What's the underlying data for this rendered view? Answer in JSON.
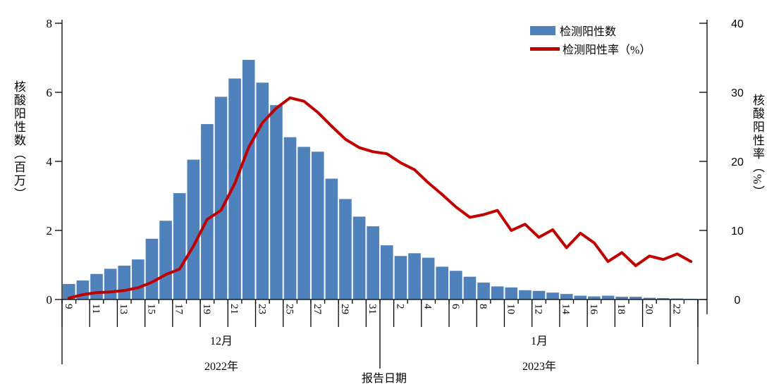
{
  "chart_data": {
    "type": "combo-bar-line",
    "background": "#FFFFFF",
    "x_axis": {
      "title": "报告日期",
      "dates": [
        "2022-12-09",
        "2022-12-10",
        "2022-12-11",
        "2022-12-12",
        "2022-12-13",
        "2022-12-14",
        "2022-12-15",
        "2022-12-16",
        "2022-12-17",
        "2022-12-18",
        "2022-12-19",
        "2022-12-20",
        "2022-12-21",
        "2022-12-22",
        "2022-12-23",
        "2022-12-24",
        "2022-12-25",
        "2022-12-26",
        "2022-12-27",
        "2022-12-28",
        "2022-12-29",
        "2022-12-30",
        "2022-12-31",
        "2023-01-01",
        "2023-01-02",
        "2023-01-03",
        "2023-01-04",
        "2023-01-05",
        "2023-01-06",
        "2023-01-07",
        "2023-01-08",
        "2023-01-09",
        "2023-01-10",
        "2023-01-11",
        "2023-01-12",
        "2023-01-13",
        "2023-01-14",
        "2023-01-15",
        "2023-01-16",
        "2023-01-17",
        "2023-01-18",
        "2023-01-19",
        "2023-01-20",
        "2023-01-21",
        "2023-01-22",
        "2023-01-23"
      ],
      "tick_labels": [
        "9",
        "11",
        "13",
        "15",
        "17",
        "19",
        "21",
        "23",
        "25",
        "27",
        "29",
        "31",
        "2",
        "4",
        "6",
        "8",
        "10",
        "12",
        "14",
        "16",
        "18",
        "20",
        "22"
      ],
      "tick_every": 2,
      "month_groups": [
        {
          "label": "12月",
          "year": "2022年",
          "days": 23
        },
        {
          "label": "1月",
          "year": "2023年",
          "days": 23
        }
      ]
    },
    "left_axis": {
      "title": "核酸阳性数（百万）",
      "min": 0,
      "max": 8,
      "ticks": [
        0,
        2,
        4,
        6,
        8
      ]
    },
    "right_axis": {
      "title": "核酸阳性率（%）",
      "min": 0,
      "max": 40,
      "ticks": [
        0,
        10,
        20,
        30,
        40
      ]
    },
    "series": [
      {
        "name": "检测阳性数",
        "type": "bar",
        "axis": "left",
        "color": "#4F81BD",
        "values": [
          0.45,
          0.55,
          0.74,
          0.89,
          0.98,
          1.16,
          1.76,
          2.28,
          3.08,
          4.05,
          5.08,
          5.87,
          6.4,
          6.94,
          6.28,
          5.63,
          4.7,
          4.42,
          4.28,
          3.5,
          2.91,
          2.4,
          2.12,
          1.57,
          1.26,
          1.34,
          1.21,
          0.95,
          0.83,
          0.66,
          0.49,
          0.38,
          0.35,
          0.27,
          0.25,
          0.2,
          0.16,
          0.11,
          0.09,
          0.11,
          0.08,
          0.08,
          0.05,
          0.04,
          0.03,
          0.02
        ]
      },
      {
        "name": "检测阳性率（%）",
        "type": "line",
        "axis": "right",
        "color": "#C00000",
        "values": [
          0.2,
          0.7,
          1.0,
          1.1,
          1.3,
          1.7,
          2.5,
          3.6,
          4.4,
          7.7,
          11.6,
          12.9,
          16.8,
          22.0,
          25.6,
          27.7,
          29.2,
          28.7,
          27.1,
          25.1,
          23.2,
          22.0,
          21.4,
          21.1,
          19.8,
          18.8,
          16.9,
          15.2,
          13.4,
          11.9,
          12.3,
          12.9,
          10.0,
          10.9,
          9.0,
          10.1,
          7.5,
          9.6,
          8.2,
          5.5,
          6.8,
          4.9,
          6.3,
          5.8,
          6.6,
          5.5
        ]
      }
    ],
    "legend": {
      "position": "top-right"
    }
  }
}
